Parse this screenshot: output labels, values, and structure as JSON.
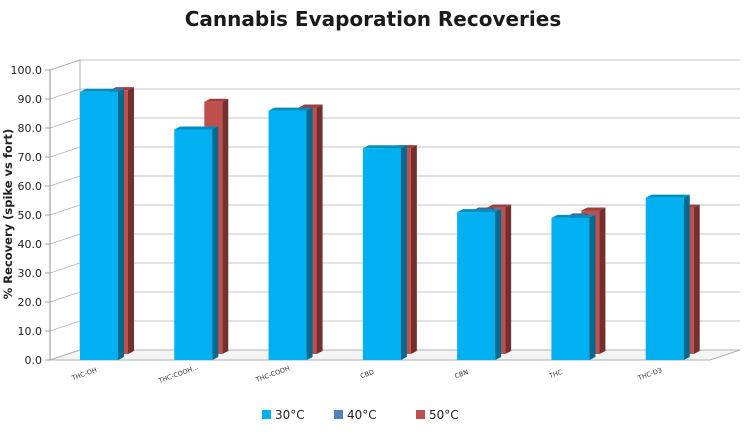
{
  "chart_data": {
    "type": "bar",
    "title": "Cannabis Evaporation Recoveries",
    "ylabel": "% Recovery (spike vs fort)",
    "xlabel": "",
    "ylim": [
      0,
      100
    ],
    "yticks": [
      "0.0",
      "10.0",
      "20.0",
      "30.0",
      "40.0",
      "50.0",
      "60.0",
      "70.0",
      "80.0",
      "90.0",
      "100.0"
    ],
    "grid": true,
    "legend_position": "bottom",
    "categories": [
      "THC-OH",
      "THC-COOH…",
      "THC-COOH",
      "CBD",
      "CBN",
      "THC",
      "THC-D3"
    ],
    "series": [
      {
        "name": "30°C",
        "color": "#00b0f0",
        "values": [
          92.5,
          79.5,
          86.0,
          73.0,
          51.0,
          49.0,
          56.0
        ]
      },
      {
        "name": "40°C",
        "color": "#4f81bd",
        "values": [
          88.0,
          75.5,
          77.0,
          71.0,
          50.5,
          48.5,
          49.5
        ]
      },
      {
        "name": "50°C",
        "color": "#c0504d",
        "values": [
          91.0,
          87.0,
          85.0,
          71.0,
          50.5,
          49.5,
          50.5
        ]
      }
    ]
  }
}
